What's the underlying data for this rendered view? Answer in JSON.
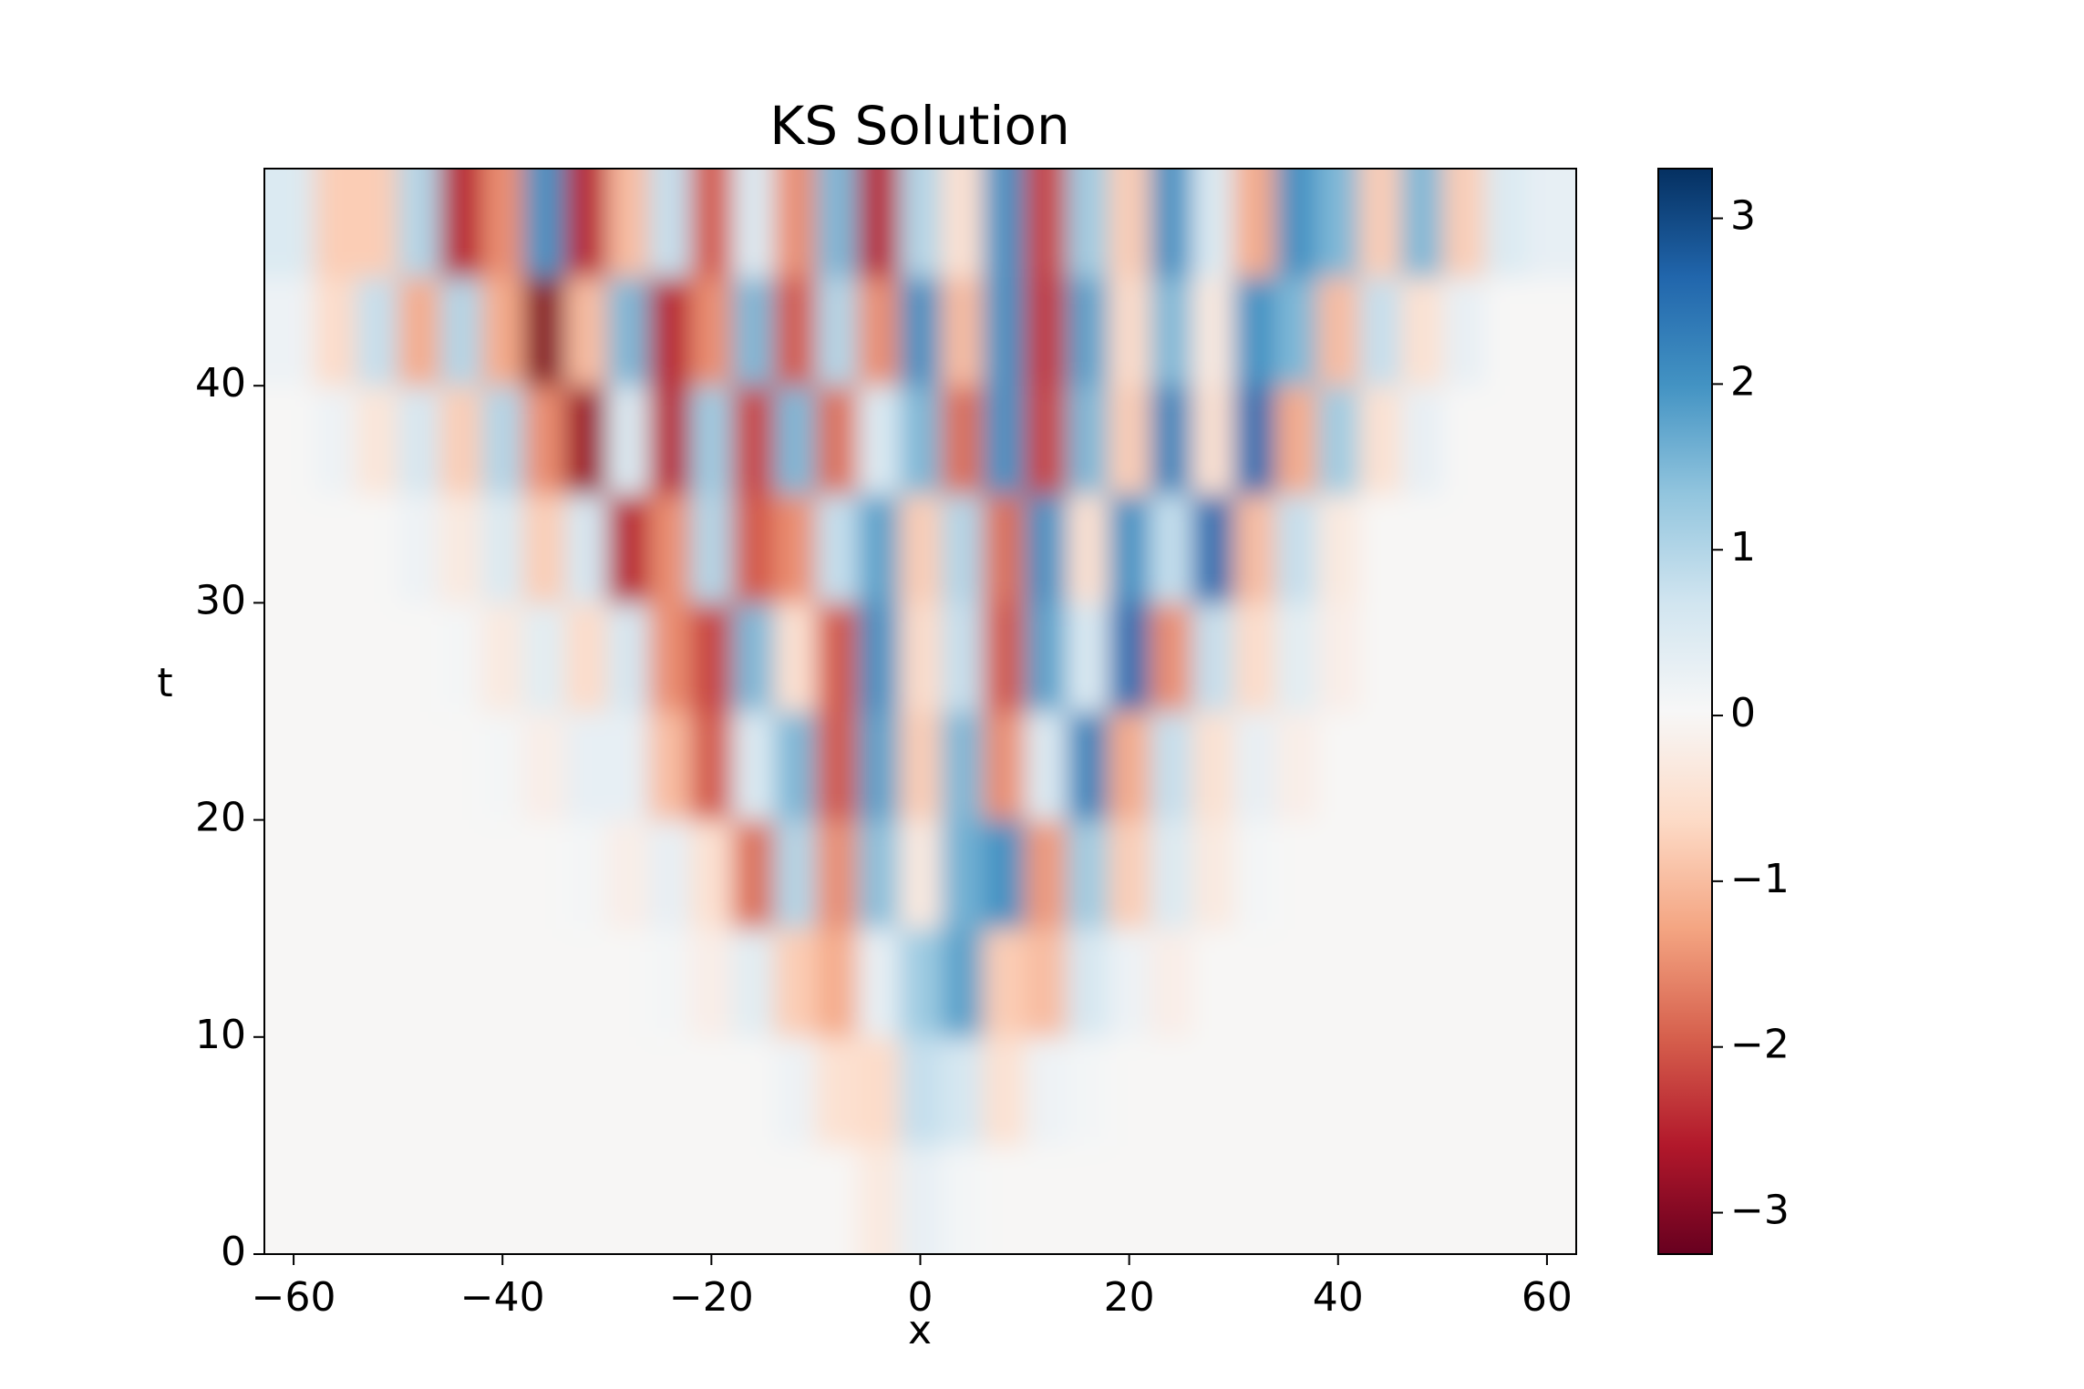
{
  "chart_data": {
    "type": "heatmap",
    "title": "KS Solution",
    "x_label": "x",
    "y_label": "t",
    "x": [
      -60,
      -56,
      -52,
      -48,
      -44,
      -40,
      -36,
      -32,
      -28,
      -24,
      -20,
      -16,
      -12,
      -8,
      -4,
      0,
      4,
      8,
      12,
      16,
      20,
      24,
      28,
      32,
      36,
      40,
      44,
      48,
      52,
      56,
      60
    ],
    "y": [
      2.5,
      7.5,
      12.5,
      17.5,
      22.5,
      27.5,
      32.5,
      37.5,
      42.5,
      47.5
    ],
    "z": [
      [
        0,
        0,
        0,
        0,
        0,
        0,
        0,
        0,
        0,
        0,
        0,
        0,
        0,
        0,
        -0.3,
        0.3,
        0.1,
        0,
        0,
        0,
        0,
        0,
        0,
        0,
        0,
        0,
        0,
        0,
        0,
        0,
        0
      ],
      [
        0,
        0,
        0,
        0,
        0,
        0,
        0,
        0,
        0,
        0,
        0,
        0,
        0.2,
        -0.5,
        -0.6,
        0.8,
        0.6,
        -0.5,
        0.2,
        0.1,
        0,
        0,
        0,
        0,
        0,
        0,
        0,
        0,
        0,
        0,
        0
      ],
      [
        0,
        0,
        0,
        0,
        0,
        0,
        0,
        0,
        0,
        0.1,
        -0.2,
        0.4,
        -0.8,
        -1.2,
        0.3,
        1.2,
        1.8,
        -0.8,
        -1.0,
        0.6,
        0.2,
        -0.2,
        0,
        0,
        0,
        0,
        0,
        0,
        0,
        0,
        0
      ],
      [
        0,
        0,
        0,
        0,
        0,
        0,
        0,
        0.1,
        -0.2,
        0.3,
        -0.5,
        -1.8,
        1.0,
        -1.5,
        1.4,
        -0.3,
        1.6,
        2.0,
        -1.4,
        1.2,
        -0.8,
        0.5,
        -0.3,
        0.1,
        0,
        0,
        0,
        0,
        0,
        0,
        0
      ],
      [
        0,
        0,
        0,
        0,
        0,
        0.1,
        -0.2,
        0.3,
        0.3,
        -1.0,
        -2.0,
        0.5,
        1.5,
        -2.0,
        1.8,
        -0.8,
        1.5,
        -1.5,
        0.5,
        2.2,
        -1.2,
        0.8,
        -0.5,
        0.3,
        -0.2,
        0,
        0,
        0,
        0,
        0,
        0
      ],
      [
        0,
        0,
        0,
        0,
        0.1,
        -0.3,
        0.4,
        -0.6,
        0.6,
        -1.5,
        -2.2,
        1.5,
        -0.5,
        -2.0,
        2.0,
        -0.6,
        0.8,
        -2.0,
        1.8,
        0.5,
        2.5,
        -1.5,
        0.8,
        -0.6,
        0.4,
        -0.2,
        0,
        0,
        0,
        0,
        0
      ],
      [
        0,
        0,
        0,
        0.2,
        -0.3,
        0.5,
        -0.8,
        0.6,
        -2.5,
        -1.5,
        1.0,
        -2.0,
        -1.5,
        0.8,
        1.8,
        -0.8,
        1.0,
        -1.8,
        2.0,
        -0.5,
        2.0,
        0.8,
        2.5,
        -1.0,
        0.8,
        -0.3,
        0,
        0,
        0,
        0,
        0
      ],
      [
        0,
        0.2,
        -0.4,
        0.6,
        -0.8,
        1.0,
        -1.5,
        -2.8,
        0.5,
        -2.5,
        1.2,
        -2.2,
        1.5,
        -1.8,
        0.5,
        1.5,
        -1.8,
        2.0,
        -2.2,
        1.5,
        -0.8,
        2.2,
        -0.5,
        2.5,
        -1.2,
        1.2,
        -0.5,
        0.3,
        0,
        0,
        0
      ],
      [
        0.2,
        -0.6,
        0.8,
        -1.2,
        1.0,
        -1.2,
        -3.0,
        -1.0,
        1.5,
        -2.5,
        -1.5,
        1.5,
        -2.0,
        1.0,
        -1.5,
        2.0,
        -1.0,
        2.0,
        -2.3,
        1.8,
        -0.6,
        1.5,
        -0.3,
        2.0,
        1.5,
        -1.0,
        0.8,
        -0.5,
        0.3,
        0,
        0
      ],
      [
        0.5,
        -0.8,
        -0.8,
        1.0,
        -2.5,
        -1.5,
        2.0,
        -2.5,
        -1.0,
        0.8,
        -2.0,
        0.5,
        -1.5,
        1.5,
        -2.5,
        1.0,
        -0.5,
        2.0,
        -2.2,
        1.2,
        -0.8,
        2.0,
        0.5,
        -1.2,
        2.0,
        1.5,
        -0.8,
        1.5,
        -0.8,
        0.5,
        0.3
      ]
    ],
    "xlim": [
      -62.8,
      62.8
    ],
    "ylim": [
      0,
      50
    ],
    "clim": [
      -3.25,
      3.3
    ],
    "xticks": [
      {
        "value": -60,
        "label": "−60"
      },
      {
        "value": -40,
        "label": "−40"
      },
      {
        "value": -20,
        "label": "−20"
      },
      0,
      20,
      40,
      60
    ],
    "yticks": [
      0,
      10,
      20,
      30,
      40
    ],
    "cticks": [
      {
        "value": -3,
        "label": "−3"
      },
      {
        "value": -2,
        "label": "−2"
      },
      {
        "value": -1,
        "label": "−1"
      },
      0,
      1,
      2,
      3
    ],
    "colormap": [
      "#67001f",
      "#b2182b",
      "#d6604d",
      "#f4a582",
      "#fddbc7",
      "#f7f7f7",
      "#d1e5f0",
      "#92c5de",
      "#4393c3",
      "#2166ac",
      "#053061"
    ]
  }
}
